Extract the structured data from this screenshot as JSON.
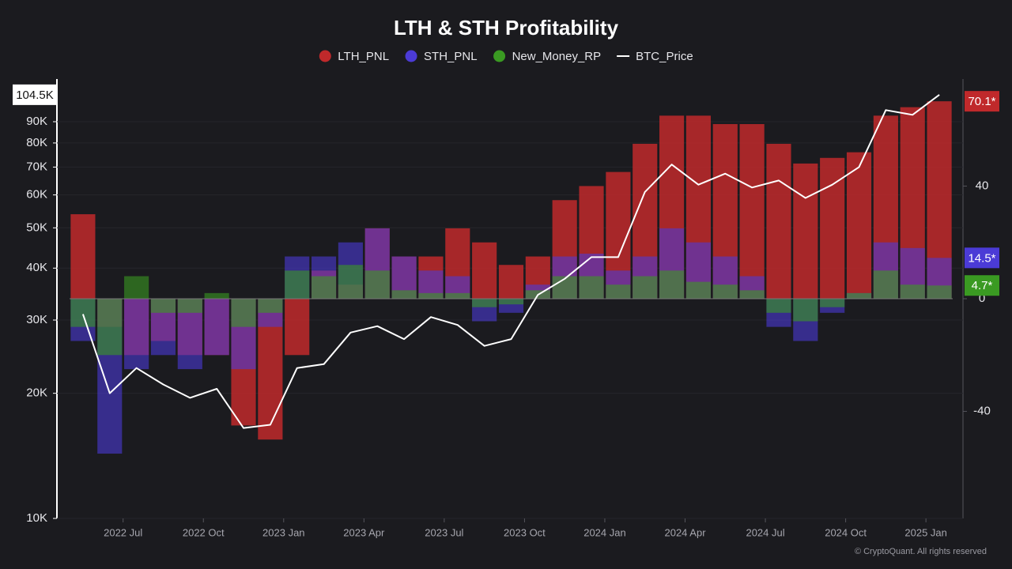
{
  "chart_data": {
    "type": "combo",
    "title": "LTH & STH Profitability",
    "source": "© CryptoQuant. All rights reserved",
    "x": [
      "2022-05",
      "2022-06",
      "2022-07",
      "2022-08",
      "2022-09",
      "2022-10",
      "2022-11",
      "2022-12",
      "2023-01",
      "2023-02",
      "2023-03",
      "2023-04",
      "2023-05",
      "2023-06",
      "2023-07",
      "2023-08",
      "2023-09",
      "2023-10",
      "2023-11",
      "2023-12",
      "2024-01",
      "2024-02",
      "2024-03",
      "2024-04",
      "2024-05",
      "2024-06",
      "2024-07",
      "2024-08",
      "2024-09",
      "2024-10",
      "2024-11",
      "2024-12",
      "2025-01"
    ],
    "xticks": [
      {
        "value": "2022-07",
        "label": "2022 Jul"
      },
      {
        "value": "2022-10",
        "label": "2022 Oct"
      },
      {
        "value": "2023-01",
        "label": "2023 Jan"
      },
      {
        "value": "2023-04",
        "label": "2023 Apr"
      },
      {
        "value": "2023-07",
        "label": "2023 Jul"
      },
      {
        "value": "2023-10",
        "label": "2023 Oct"
      },
      {
        "value": "2024-01",
        "label": "2024 Jan"
      },
      {
        "value": "2024-04",
        "label": "2024 Apr"
      },
      {
        "value": "2024-07",
        "label": "2024 Jul"
      },
      {
        "value": "2024-10",
        "label": "2024 Oct"
      },
      {
        "value": "2025-01",
        "label": "2025 Jan"
      }
    ],
    "log_y": true,
    "ylim": [
      10000,
      114000
    ],
    "yticks": [
      {
        "value": 10000,
        "label": "10K"
      },
      {
        "value": 20000,
        "label": "20K"
      },
      {
        "value": 30000,
        "label": "30K"
      },
      {
        "value": 40000,
        "label": "40K"
      },
      {
        "value": 50000,
        "label": "50K"
      },
      {
        "value": 60000,
        "label": "60K"
      },
      {
        "value": 70000,
        "label": "70K"
      },
      {
        "value": 80000,
        "label": "80K"
      },
      {
        "value": 90000,
        "label": "90K"
      }
    ],
    "y2lim": [
      -78,
      78
    ],
    "y2ticks": [
      -40,
      0,
      40
    ],
    "series": [
      {
        "name": "LTH_PNL",
        "type": "bar",
        "axis": "y2",
        "color": "#c0292b",
        "current_label": "70.1*",
        "values": [
          30,
          -10,
          -20,
          -15,
          -20,
          -20,
          -45,
          -50,
          -20,
          10,
          5,
          25,
          15,
          15,
          25,
          20,
          12,
          15,
          35,
          40,
          45,
          55,
          65,
          65,
          62,
          62,
          55,
          48,
          50,
          52,
          65,
          68,
          70.1
        ]
      },
      {
        "name": "STH_PNL",
        "type": "bar",
        "axis": "y2",
        "color": "#4b3bd6",
        "current_label": "14.5*",
        "values": [
          -15,
          -55,
          -25,
          -20,
          -25,
          -20,
          -25,
          -10,
          15,
          15,
          20,
          25,
          15,
          10,
          8,
          -8,
          -5,
          5,
          15,
          16,
          10,
          15,
          25,
          20,
          15,
          8,
          -10,
          -15,
          -5,
          2,
          20,
          18,
          14.5
        ]
      },
      {
        "name": "New_Money_RP",
        "type": "bar",
        "axis": "y2",
        "color": "#3a9a22",
        "current_label": "4.7*",
        "values": [
          -10,
          -20,
          8,
          -5,
          -5,
          2,
          -10,
          -5,
          10,
          8,
          12,
          10,
          3,
          2,
          2,
          -3,
          -2,
          3,
          8,
          8,
          5,
          8,
          10,
          6,
          5,
          3,
          -5,
          -8,
          -3,
          2,
          10,
          5,
          4.7
        ]
      },
      {
        "name": "BTC_Price",
        "type": "line",
        "axis": "y",
        "color": "#ffffff",
        "current_label": "104.5K",
        "values": [
          31000,
          20000,
          23000,
          21000,
          19500,
          20500,
          16500,
          16800,
          23000,
          23500,
          28000,
          29000,
          27000,
          30500,
          29200,
          26000,
          27000,
          34500,
          37700,
          42500,
          42500,
          61000,
          71000,
          63500,
          67500,
          62500,
          65000,
          59000,
          63500,
          70000,
          96000,
          93500,
          104500
        ]
      }
    ]
  }
}
